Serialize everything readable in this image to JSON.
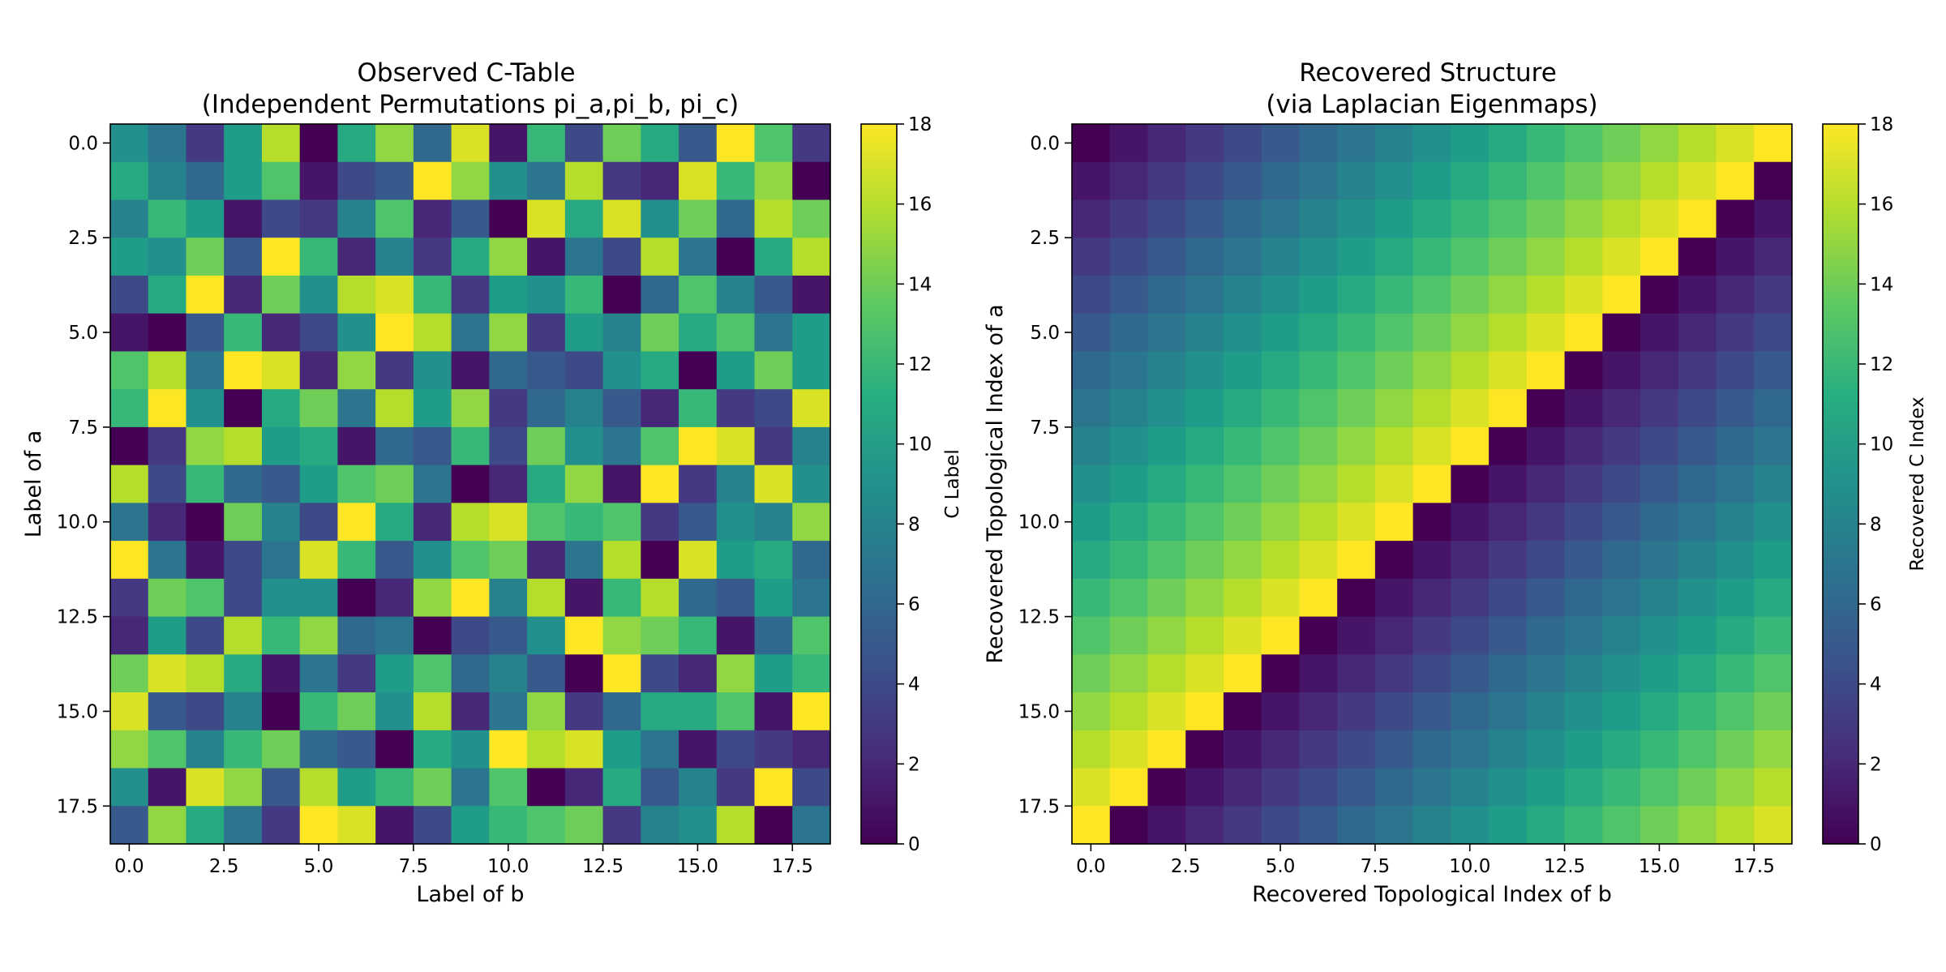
{
  "chart_data": [
    {
      "type": "heatmap",
      "title": "Observed C-Table\n(Independent Permutations pi_a,pi_b, pi_c)",
      "xlabel": "Label of b",
      "ylabel": "Label of a",
      "colorbar_label": "C Label",
      "colormap": "viridis",
      "vmin": 0,
      "vmax": 18,
      "xticks": [
        "0.0",
        "2.5",
        "5.0",
        "7.5",
        "10.0",
        "12.5",
        "15.0",
        "17.5"
      ],
      "yticks": [
        "0.0",
        "2.5",
        "5.0",
        "7.5",
        "10.0",
        "12.5",
        "15.0",
        "17.5"
      ],
      "cbticks": [
        "0",
        "2",
        "4",
        "6",
        "8",
        "10",
        "12",
        "14",
        "16",
        "18"
      ],
      "grid": false,
      "values": [
        [
          9,
          7,
          3,
          10,
          16,
          0,
          11,
          15,
          6,
          17,
          1,
          12,
          4,
          14,
          11,
          5,
          18,
          13,
          3
        ],
        [
          11,
          8,
          6,
          10,
          13,
          1,
          4,
          5,
          18,
          15,
          9,
          7,
          16,
          3,
          2,
          17,
          12,
          15,
          0
        ],
        [
          8,
          12,
          10,
          1,
          4,
          3,
          8,
          13,
          2,
          5,
          0,
          17,
          11,
          17,
          9,
          14,
          6,
          16,
          14
        ],
        [
          10,
          9,
          14,
          5,
          18,
          12,
          2,
          8,
          3,
          11,
          15,
          1,
          7,
          4,
          16,
          7,
          0,
          11,
          16
        ],
        [
          4,
          11,
          18,
          2,
          14,
          9,
          16,
          17,
          12,
          3,
          10,
          9,
          12,
          0,
          6,
          13,
          8,
          5,
          1
        ],
        [
          1,
          0,
          5,
          12,
          2,
          4,
          9,
          18,
          16,
          7,
          15,
          3,
          10,
          8,
          14,
          11,
          13,
          7,
          10
        ],
        [
          13,
          16,
          7,
          18,
          17,
          2,
          15,
          3,
          9,
          1,
          6,
          5,
          4,
          9,
          11,
          0,
          10,
          14,
          10
        ],
        [
          12,
          18,
          9,
          0,
          11,
          14,
          7,
          16,
          10,
          15,
          3,
          6,
          8,
          5,
          2,
          12,
          3,
          4,
          17
        ],
        [
          0,
          3,
          15,
          16,
          10,
          11,
          1,
          6,
          5,
          12,
          4,
          14,
          9,
          7,
          13,
          18,
          17,
          3,
          8
        ],
        [
          16,
          4,
          12,
          6,
          5,
          10,
          13,
          14,
          7,
          0,
          2,
          11,
          15,
          1,
          18,
          3,
          8,
          17,
          9
        ],
        [
          7,
          2,
          0,
          14,
          8,
          4,
          18,
          11,
          2,
          16,
          17,
          13,
          12,
          13,
          3,
          5,
          9,
          8,
          15
        ],
        [
          18,
          7,
          1,
          4,
          7,
          17,
          12,
          5,
          9,
          13,
          14,
          2,
          7,
          16,
          0,
          17,
          10,
          11,
          6
        ],
        [
          3,
          14,
          13,
          4,
          9,
          9,
          0,
          2,
          15,
          18,
          8,
          16,
          1,
          12,
          16,
          6,
          5,
          10,
          7
        ],
        [
          2,
          10,
          4,
          16,
          12,
          15,
          6,
          7,
          0,
          4,
          5,
          9,
          18,
          15,
          14,
          12,
          1,
          6,
          13
        ],
        [
          14,
          17,
          16,
          11,
          1,
          7,
          3,
          10,
          13,
          6,
          8,
          5,
          0,
          18,
          4,
          2,
          15,
          10,
          12
        ],
        [
          17,
          5,
          4,
          8,
          0,
          12,
          14,
          9,
          16,
          2,
          7,
          15,
          3,
          6,
          11,
          11,
          13,
          1,
          18
        ],
        [
          15,
          13,
          8,
          12,
          14,
          6,
          5,
          0,
          11,
          9,
          18,
          16,
          17,
          10,
          7,
          1,
          4,
          3,
          2
        ],
        [
          9,
          1,
          17,
          15,
          5,
          16,
          10,
          12,
          14,
          7,
          13,
          0,
          2,
          11,
          5,
          8,
          3,
          18,
          4
        ],
        [
          5,
          15,
          11,
          7,
          3,
          18,
          17,
          1,
          4,
          10,
          12,
          13,
          14,
          3,
          8,
          9,
          16,
          0,
          7
        ]
      ]
    },
    {
      "type": "heatmap",
      "title": "Recovered Structure\n(via Laplacian Eigenmaps)",
      "xlabel": "Recovered Topological Index of b",
      "ylabel": "Recovered Topological Index of a",
      "colorbar_label": "Recovered C Index",
      "colormap": "viridis",
      "vmin": 0,
      "vmax": 18,
      "xticks": [
        "0.0",
        "2.5",
        "5.0",
        "7.5",
        "10.0",
        "12.5",
        "15.0",
        "17.5"
      ],
      "yticks": [
        "0.0",
        "2.5",
        "5.0",
        "7.5",
        "10.0",
        "12.5",
        "15.0",
        "17.5"
      ],
      "cbticks": [
        "0",
        "2",
        "4",
        "6",
        "8",
        "10",
        "12",
        "14",
        "16",
        "18"
      ],
      "grid": false,
      "values": [
        [
          0,
          1,
          2,
          3,
          4,
          5,
          6,
          7,
          8,
          9,
          10,
          11,
          12,
          13,
          14,
          15,
          16,
          17,
          18
        ],
        [
          1,
          2,
          3,
          4,
          5,
          6,
          7,
          8,
          9,
          10,
          11,
          12,
          13,
          14,
          15,
          16,
          17,
          18,
          0
        ],
        [
          2,
          3,
          4,
          5,
          6,
          7,
          8,
          9,
          10,
          11,
          12,
          13,
          14,
          15,
          16,
          17,
          18,
          0,
          1
        ],
        [
          3,
          4,
          5,
          6,
          7,
          8,
          9,
          10,
          11,
          12,
          13,
          14,
          15,
          16,
          17,
          18,
          0,
          1,
          2
        ],
        [
          4,
          5,
          6,
          7,
          8,
          9,
          10,
          11,
          12,
          13,
          14,
          15,
          16,
          17,
          18,
          0,
          1,
          2,
          3
        ],
        [
          5,
          6,
          7,
          8,
          9,
          10,
          11,
          12,
          13,
          14,
          15,
          16,
          17,
          18,
          0,
          1,
          2,
          3,
          4
        ],
        [
          6,
          7,
          8,
          9,
          10,
          11,
          12,
          13,
          14,
          15,
          16,
          17,
          18,
          0,
          1,
          2,
          3,
          4,
          5
        ],
        [
          7,
          8,
          9,
          10,
          11,
          12,
          13,
          14,
          15,
          16,
          17,
          18,
          0,
          1,
          2,
          3,
          4,
          5,
          6
        ],
        [
          8,
          9,
          10,
          11,
          12,
          13,
          14,
          15,
          16,
          17,
          18,
          0,
          1,
          2,
          3,
          4,
          5,
          6,
          7
        ],
        [
          9,
          10,
          11,
          12,
          13,
          14,
          15,
          16,
          17,
          18,
          0,
          1,
          2,
          3,
          4,
          5,
          6,
          7,
          8
        ],
        [
          10,
          11,
          12,
          13,
          14,
          15,
          16,
          17,
          18,
          0,
          1,
          2,
          3,
          4,
          5,
          6,
          7,
          8,
          9
        ],
        [
          11,
          12,
          13,
          14,
          15,
          16,
          17,
          18,
          0,
          1,
          2,
          3,
          4,
          5,
          6,
          7,
          8,
          9,
          10
        ],
        [
          12,
          13,
          14,
          15,
          16,
          17,
          18,
          0,
          1,
          2,
          3,
          4,
          5,
          6,
          7,
          8,
          9,
          10,
          11
        ],
        [
          13,
          14,
          15,
          16,
          17,
          18,
          0,
          1,
          2,
          3,
          4,
          5,
          6,
          7,
          8,
          9,
          10,
          11,
          12
        ],
        [
          14,
          15,
          16,
          17,
          18,
          0,
          1,
          2,
          3,
          4,
          5,
          6,
          7,
          8,
          9,
          10,
          11,
          12,
          13
        ],
        [
          15,
          16,
          17,
          18,
          0,
          1,
          2,
          3,
          4,
          5,
          6,
          7,
          8,
          9,
          10,
          11,
          12,
          13,
          14
        ],
        [
          16,
          17,
          18,
          0,
          1,
          2,
          3,
          4,
          5,
          6,
          7,
          8,
          9,
          10,
          11,
          12,
          13,
          14,
          15
        ],
        [
          17,
          18,
          0,
          1,
          2,
          3,
          4,
          5,
          6,
          7,
          8,
          9,
          10,
          11,
          12,
          13,
          14,
          15,
          16
        ],
        [
          18,
          0,
          1,
          2,
          3,
          4,
          5,
          6,
          7,
          8,
          9,
          10,
          11,
          12,
          13,
          14,
          15,
          16,
          17
        ]
      ]
    }
  ]
}
